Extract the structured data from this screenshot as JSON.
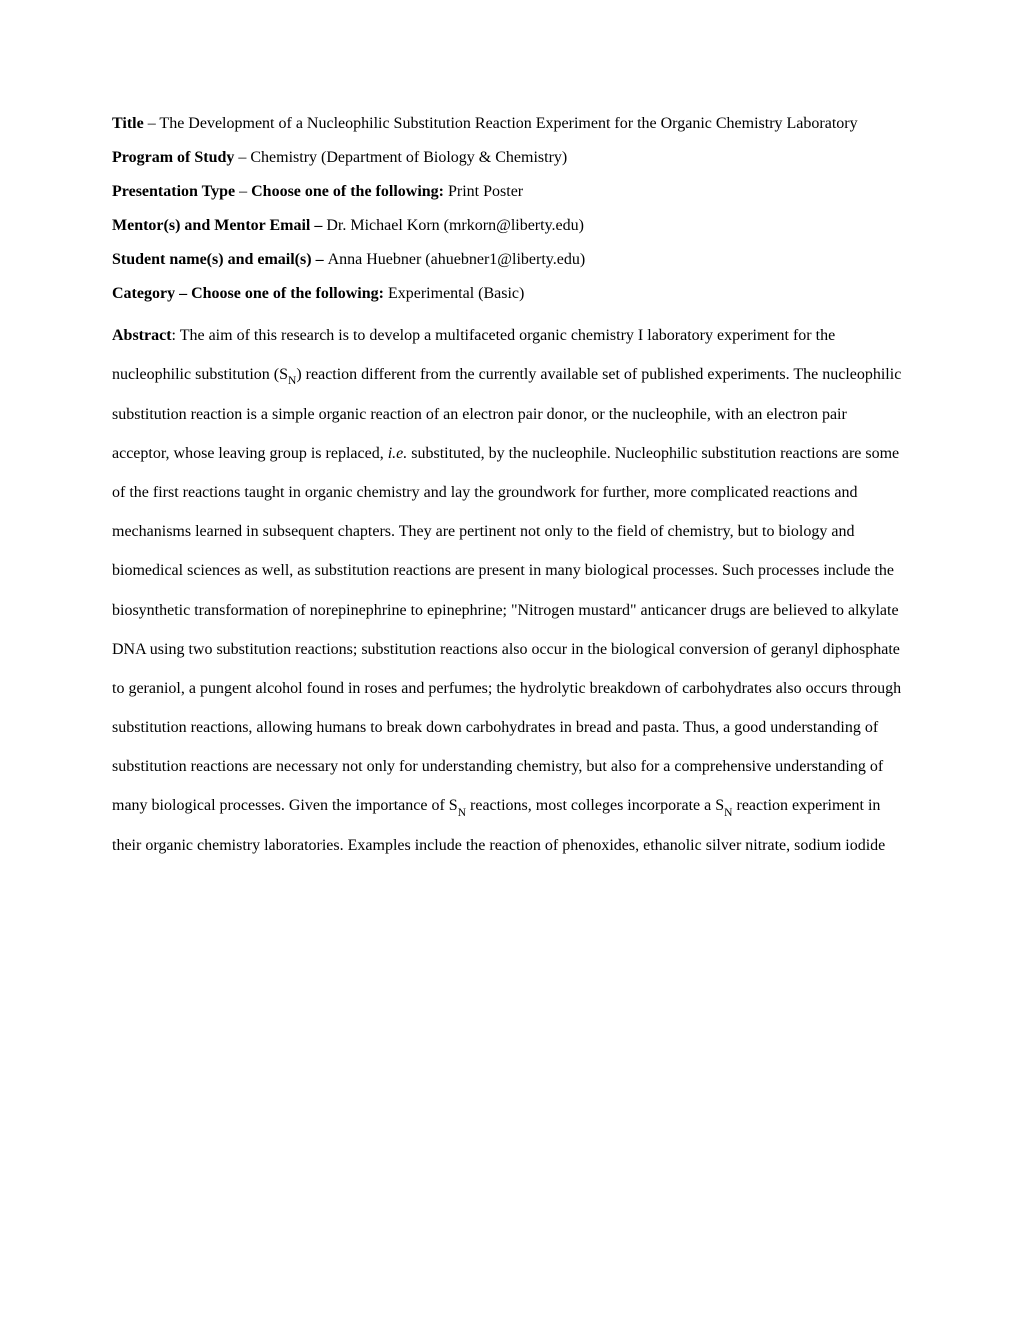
{
  "title_label": "Title",
  "title_value": " – The Development of a Nucleophilic Substitution Reaction Experiment for the Organic Chemistry Laboratory",
  "program_label": "Program of Study",
  "program_value": " – Chemistry (Department of Biology & Chemistry)",
  "presentation_label": "Presentation Type",
  "presentation_choose": "Choose one of the following: ",
  "presentation_value": "Print Poster",
  "mentor_label": "Mentor(s) and Mentor Email – ",
  "mentor_value": "Dr. Michael Korn (mrkorn@liberty.edu)",
  "student_label": "Student name(s) and email(s) – ",
  "student_value": "Anna Huebner (ahuebner1@liberty.edu)",
  "category_label": "Category – Choose one of the following: ",
  "category_value": "Experimental (Basic)",
  "abstract_label": "Abstract",
  "abstract_p1a": ": The aim of this research is to develop a multifaceted organic chemistry I laboratory experiment for the nucleophilic substitution (S",
  "abstract_subN": "N",
  "abstract_p1b": ") reaction different from the currently available set of published experiments. The nucleophilic substitution reaction is a simple organic reaction of an electron pair donor, or the nucleophile, with an electron pair acceptor, whose leaving group is replaced, ",
  "abstract_ie": "i.e.",
  "abstract_p1c": " substituted, by the nucleophile. Nucleophilic substitution reactions are some of the first reactions taught in organic chemistry and lay the groundwork for further, more complicated reactions and mechanisms learned in subsequent chapters. They are pertinent not only to the field of chemistry, but to biology and biomedical sciences as well, as substitution reactions are present in many biological processes. Such processes include the biosynthetic transformation of norepinephrine to epinephrine; \"Nitrogen mustard\" anticancer drugs are believed to alkylate DNA using two substitution reactions; substitution reactions also occur in the biological conversion of geranyl diphosphate to geraniol, a pungent alcohol found in roses and perfumes; the hydrolytic breakdown of carbohydrates also occurs through substitution reactions, allowing humans to break down carbohydrates in bread and pasta. Thus, a good understanding of substitution reactions are necessary not only for understanding chemistry, but also for a comprehensive understanding of many biological processes. Given the importance of S",
  "abstract_p1d": " reactions, most colleges incorporate a S",
  "abstract_p1e": " reaction experiment in their organic chemistry laboratories. Examples include the reaction of phenoxides, ethanolic silver nitrate, sodium iodide"
}
